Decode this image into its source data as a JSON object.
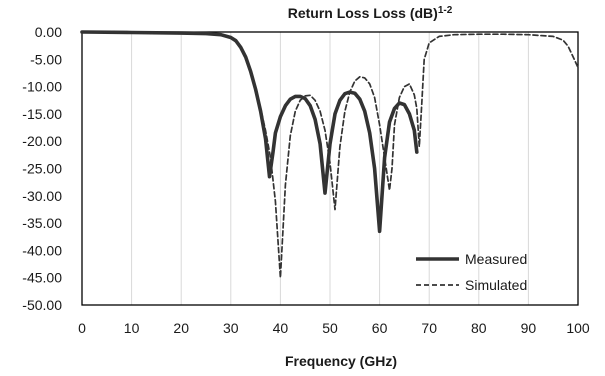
{
  "chart_data": {
    "type": "line",
    "title": "Return Loss Loss (dB)",
    "title_superscript": "1-2",
    "xlabel": "Frequency (GHz)",
    "ylabel": "",
    "xlim": [
      0,
      100
    ],
    "ylim": [
      -50,
      0
    ],
    "x_ticks": [
      0,
      10,
      20,
      30,
      40,
      50,
      60,
      70,
      80,
      90,
      100
    ],
    "y_ticks": [
      0,
      -5,
      -10,
      -15,
      -20,
      -25,
      -30,
      -35,
      -40,
      -45,
      -50
    ],
    "y_tick_labels": [
      "0.00",
      "-5.00",
      "-10.00",
      "-15.00",
      "-20.00",
      "-25.00",
      "-30.00",
      "-35.00",
      "-40.00",
      "-45.00",
      "-50.00"
    ],
    "x_tick_labels": [
      "0",
      "10",
      "20",
      "30",
      "40",
      "50",
      "60",
      "70",
      "80",
      "90",
      "100"
    ],
    "grid": "vertical",
    "legend_position": "bottom-right",
    "series": [
      {
        "name": "Measured",
        "style": "solid",
        "color": "#333333",
        "points": [
          [
            0,
            0
          ],
          [
            10,
            -0.1
          ],
          [
            20,
            -0.2
          ],
          [
            25,
            -0.3
          ],
          [
            28,
            -0.5
          ],
          [
            30,
            -1.0
          ],
          [
            31,
            -1.6
          ],
          [
            32,
            -2.8
          ],
          [
            33,
            -4.6
          ],
          [
            34,
            -7.2
          ],
          [
            35,
            -10.5
          ],
          [
            36,
            -14.5
          ],
          [
            37,
            -19.5
          ],
          [
            37.8,
            -26.5
          ],
          [
            38.5,
            -22
          ],
          [
            39,
            -18.5
          ],
          [
            40,
            -15.5
          ],
          [
            41,
            -13.5
          ],
          [
            42,
            -12.3
          ],
          [
            43,
            -11.8
          ],
          [
            44,
            -11.8
          ],
          [
            45,
            -12.2
          ],
          [
            46,
            -13.5
          ],
          [
            47,
            -16
          ],
          [
            48,
            -20.5
          ],
          [
            49,
            -29.5
          ],
          [
            50,
            -20.5
          ],
          [
            51,
            -15
          ],
          [
            52,
            -12.5
          ],
          [
            53,
            -11.3
          ],
          [
            54,
            -11
          ],
          [
            55,
            -11.2
          ],
          [
            56,
            -12.3
          ],
          [
            57,
            -14.5
          ],
          [
            58,
            -18.5
          ],
          [
            59,
            -25
          ],
          [
            60,
            -36.5
          ],
          [
            61,
            -23
          ],
          [
            62,
            -16.5
          ],
          [
            63,
            -14
          ],
          [
            64,
            -13
          ],
          [
            65,
            -13.3
          ],
          [
            66,
            -15
          ],
          [
            67,
            -18
          ],
          [
            67.5,
            -22
          ]
        ]
      },
      {
        "name": "Simulated",
        "style": "dashed",
        "color": "#333333",
        "points": [
          [
            0,
            0
          ],
          [
            10,
            -0.1
          ],
          [
            20,
            -0.2
          ],
          [
            25,
            -0.3
          ],
          [
            28,
            -0.5
          ],
          [
            30,
            -1.0
          ],
          [
            31,
            -1.8
          ],
          [
            32,
            -3.0
          ],
          [
            33,
            -5.0
          ],
          [
            34,
            -7.5
          ],
          [
            35,
            -10.5
          ],
          [
            36,
            -14
          ],
          [
            37,
            -18
          ],
          [
            38,
            -23
          ],
          [
            39,
            -31
          ],
          [
            40,
            -45
          ],
          [
            41,
            -28
          ],
          [
            42,
            -19
          ],
          [
            43,
            -14.5
          ],
          [
            44,
            -12.5
          ],
          [
            45,
            -11.7
          ],
          [
            46,
            -11.6
          ],
          [
            47,
            -12.5
          ],
          [
            48,
            -14.5
          ],
          [
            49,
            -18
          ],
          [
            50,
            -24
          ],
          [
            51,
            -32.5
          ],
          [
            52,
            -21
          ],
          [
            53,
            -14.5
          ],
          [
            54,
            -11
          ],
          [
            55,
            -9
          ],
          [
            56,
            -8.2
          ],
          [
            57,
            -8.4
          ],
          [
            58,
            -9.5
          ],
          [
            59,
            -12
          ],
          [
            60,
            -17
          ],
          [
            61,
            -23
          ],
          [
            62,
            -29
          ],
          [
            62.5,
            -25
          ],
          [
            63,
            -17
          ],
          [
            64,
            -12
          ],
          [
            65,
            -10
          ],
          [
            66,
            -9.5
          ],
          [
            67,
            -11.5
          ],
          [
            67.5,
            -14
          ],
          [
            68,
            -21
          ],
          [
            68.5,
            -13
          ],
          [
            69,
            -5
          ],
          [
            70,
            -2
          ],
          [
            72,
            -0.8
          ],
          [
            75,
            -0.5
          ],
          [
            80,
            -0.4
          ],
          [
            85,
            -0.4
          ],
          [
            90,
            -0.5
          ],
          [
            95,
            -0.8
          ],
          [
            97,
            -1.5
          ],
          [
            98,
            -2.6
          ],
          [
            99,
            -4.5
          ],
          [
            100,
            -6.5
          ]
        ]
      }
    ]
  }
}
